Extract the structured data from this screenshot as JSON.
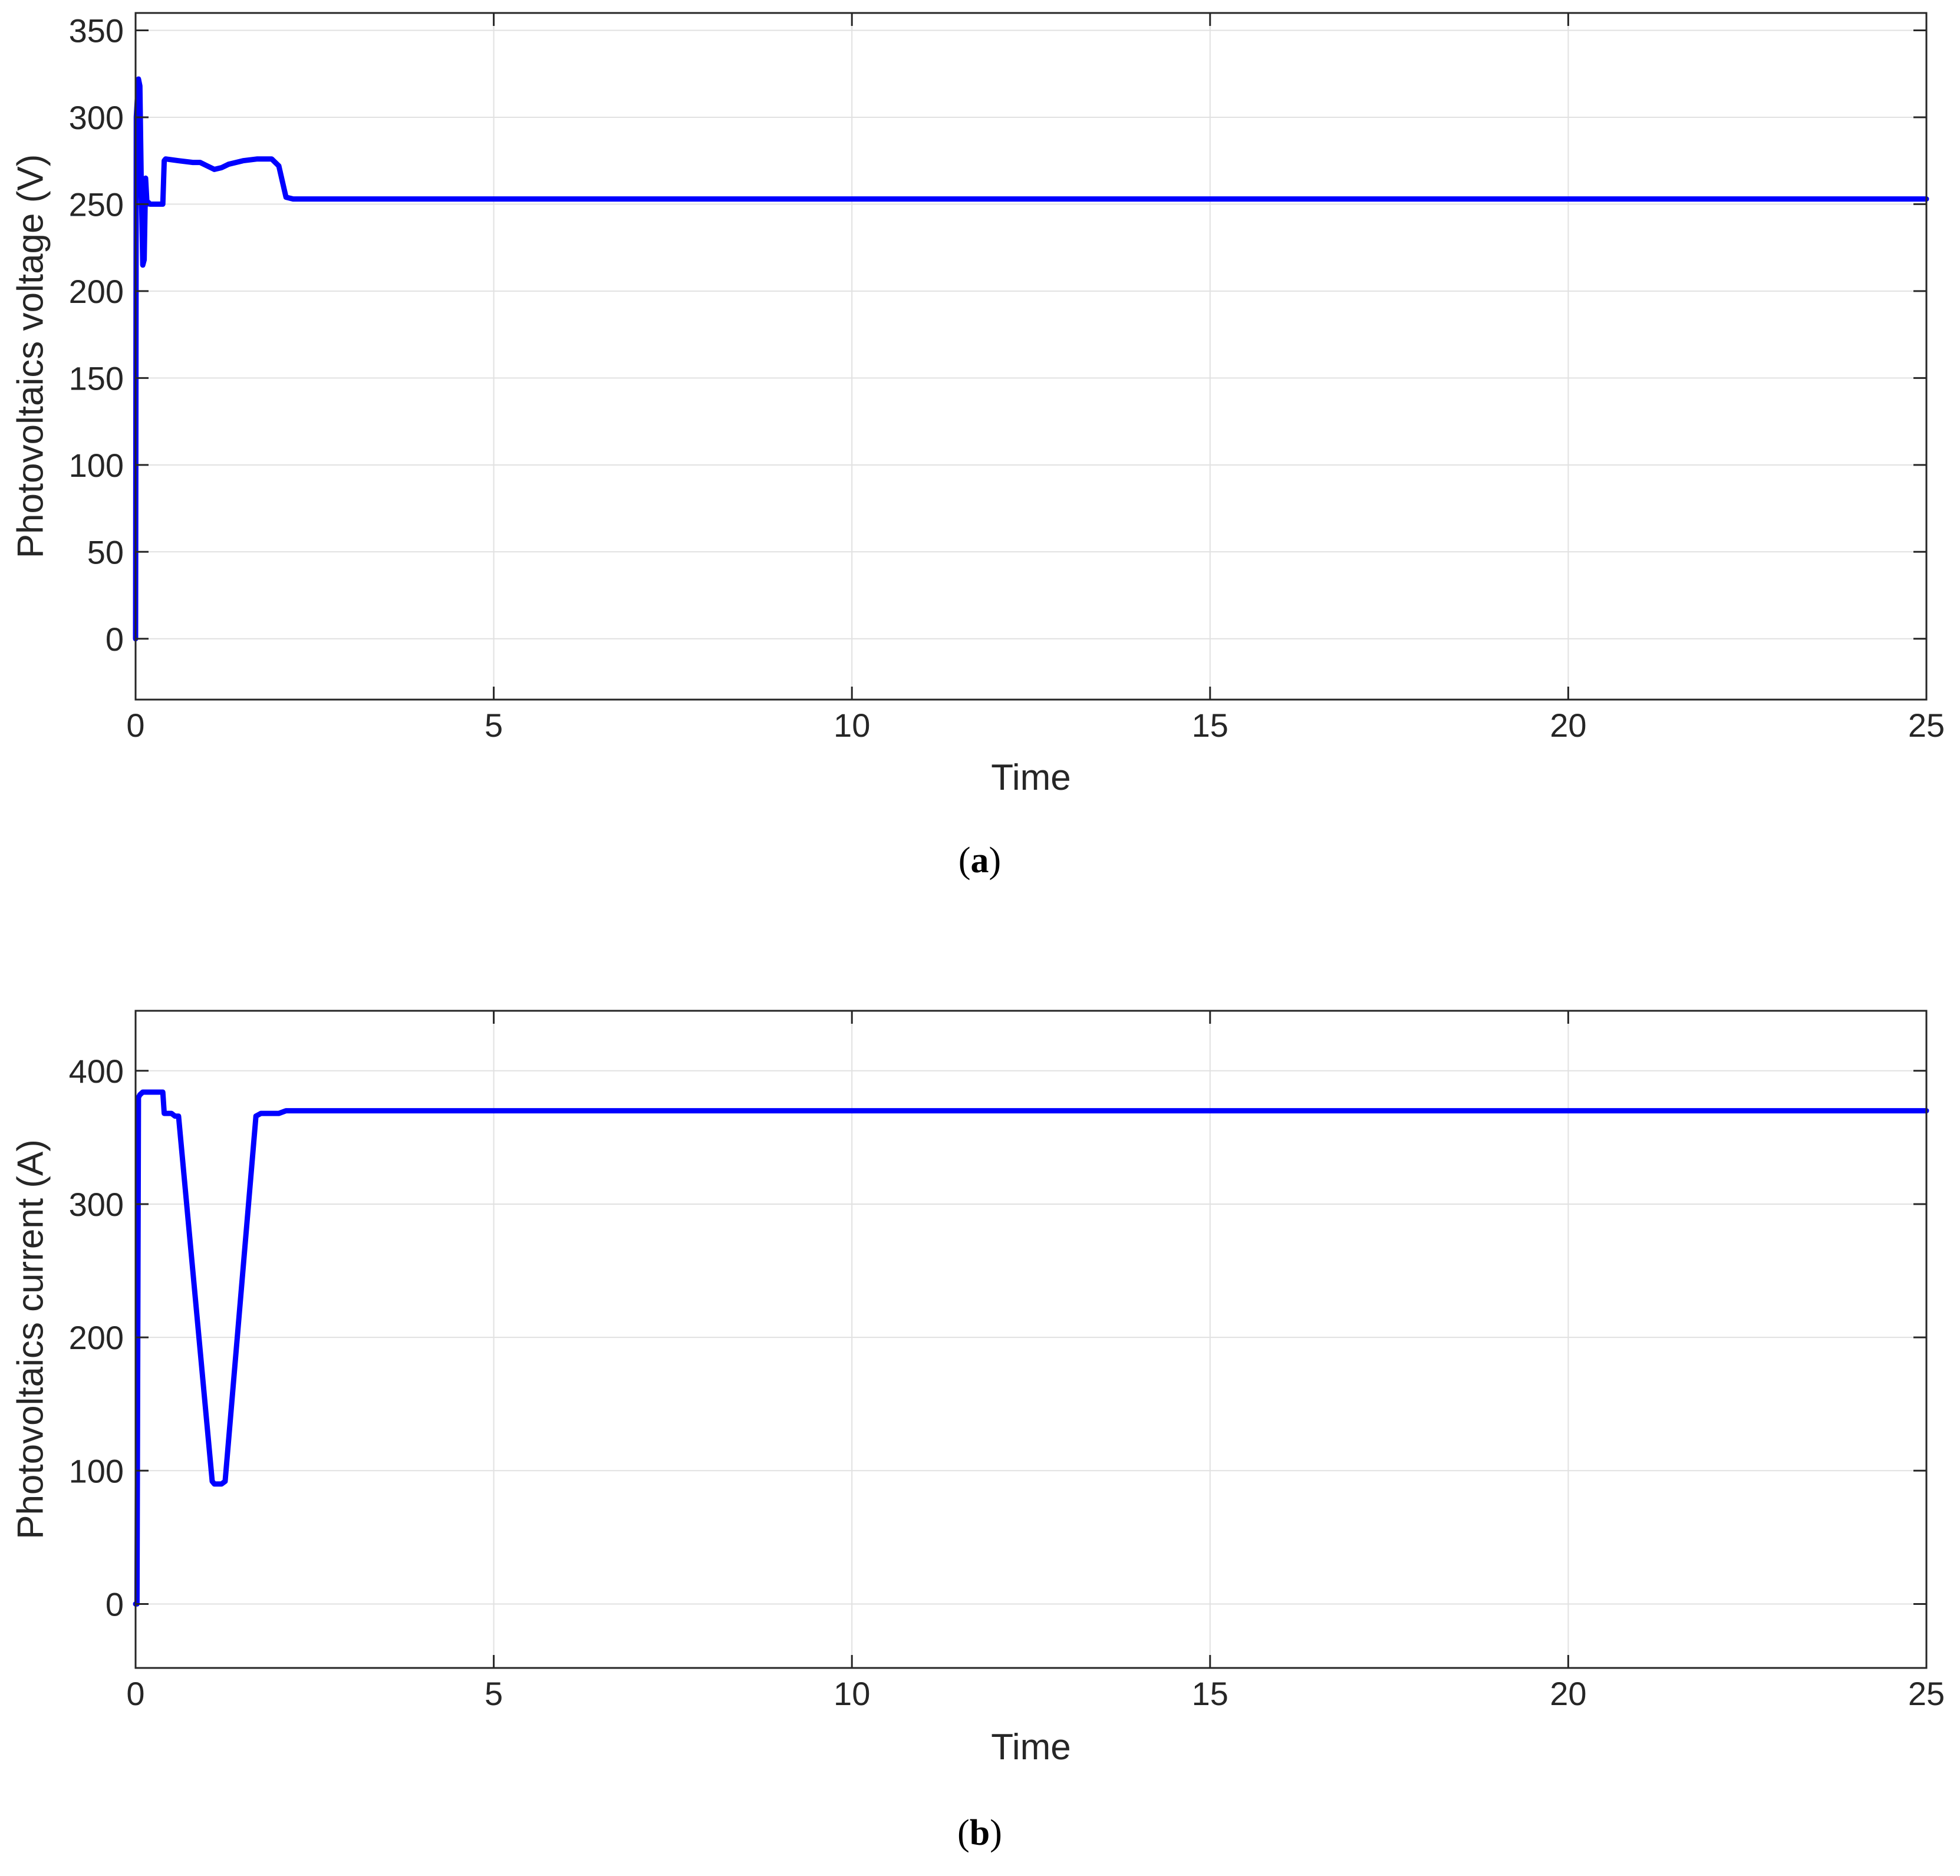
{
  "chart_data": [
    {
      "type": "line",
      "panel_caption": "a",
      "xlabel": "Time",
      "ylabel": "Photovoltaics voltage (V)",
      "xlim": [
        0,
        25
      ],
      "ylim": [
        -35,
        360
      ],
      "xticks": [
        0,
        5,
        10,
        15,
        20,
        25
      ],
      "yticks": [
        0,
        50,
        100,
        150,
        200,
        250,
        300,
        350
      ],
      "grid": true,
      "line_color": "#0000ff",
      "series": [
        {
          "x": [
            0,
            0.01,
            0.04,
            0.06,
            0.08,
            0.1,
            0.12,
            0.14,
            0.16,
            0.18,
            0.2,
            0.22,
            0.3,
            0.38,
            0.4,
            0.42,
            0.6,
            0.8,
            0.9,
            1.0,
            1.1,
            1.2,
            1.3,
            1.5,
            1.7,
            1.9,
            2.0,
            2.1,
            2.2,
            5,
            10,
            15,
            20,
            25
          ],
          "y": [
            0,
            300,
            322,
            318,
            260,
            215,
            218,
            265,
            250,
            251,
            250,
            250,
            250,
            250,
            275,
            276,
            275,
            274,
            274,
            272,
            270,
            271,
            273,
            275,
            276,
            276,
            272,
            254,
            253,
            253,
            253,
            253,
            253,
            253
          ]
        }
      ]
    },
    {
      "type": "line",
      "panel_caption": "b",
      "xlabel": "Time",
      "ylabel": "Photovoltaics current (A)",
      "xlim": [
        0,
        25
      ],
      "ylim": [
        -48,
        445
      ],
      "xticks": [
        0,
        5,
        10,
        15,
        20,
        25
      ],
      "yticks": [
        0,
        100,
        200,
        300,
        400
      ],
      "grid": true,
      "line_color": "#0000ff",
      "series": [
        {
          "x": [
            0,
            0.02,
            0.04,
            0.06,
            0.1,
            0.15,
            0.2,
            0.3,
            0.35,
            0.38,
            0.4,
            0.5,
            0.55,
            0.6,
            1.07,
            1.1,
            1.15,
            1.2,
            1.25,
            1.68,
            1.75,
            2.0,
            2.1,
            2.2,
            5,
            10,
            15,
            20,
            25
          ],
          "y": [
            0,
            0,
            380,
            382,
            384,
            384,
            384,
            384,
            384,
            384,
            368,
            368,
            366,
            366,
            92,
            90,
            90,
            90,
            92,
            366,
            368,
            368,
            370,
            370,
            370,
            370,
            370,
            370,
            370
          ]
        }
      ]
    }
  ]
}
